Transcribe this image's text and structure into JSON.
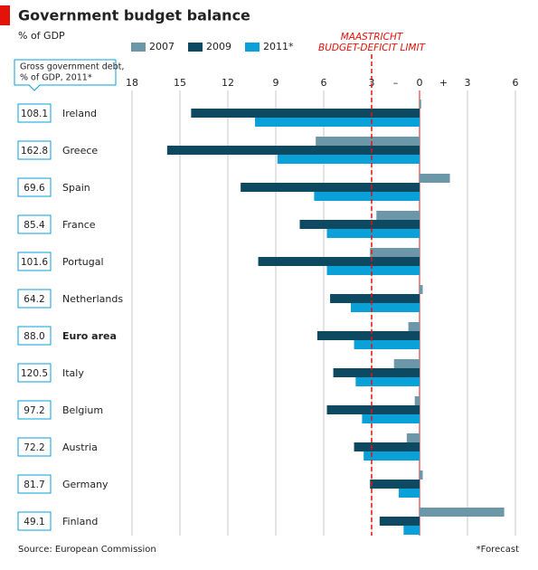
{
  "chart_data": {
    "type": "hbar",
    "title": "Government budget balance",
    "subtitle": "% of GDP",
    "categories": [
      "Ireland",
      "Greece",
      "Spain",
      "France",
      "Portugal",
      "Netherlands",
      "Euro area",
      "Italy",
      "Belgium",
      "Austria",
      "Germany",
      "Finland"
    ],
    "highlight_category": "Euro area",
    "series": [
      {
        "name": "2007",
        "color": "#6b97a8",
        "values": [
          0.1,
          -6.5,
          1.9,
          -2.7,
          -3.1,
          0.2,
          -0.7,
          -1.6,
          -0.3,
          -0.8,
          0.2,
          5.3
        ]
      },
      {
        "name": "2009",
        "color": "#0d4a62",
        "values": [
          -14.3,
          -15.8,
          -11.2,
          -7.5,
          -10.1,
          -5.6,
          -6.4,
          -5.4,
          -5.8,
          -4.1,
          -3.1,
          -2.5
        ]
      },
      {
        "name": "2011*",
        "color": "#0aa0d8",
        "values": [
          -10.3,
          -8.9,
          -6.6,
          -5.8,
          -5.8,
          -4.3,
          -4.1,
          -4.0,
          -3.6,
          -3.5,
          -1.3,
          -1.0
        ]
      }
    ],
    "xlim": [
      -18,
      6
    ],
    "xticks": [
      {
        "value": -18,
        "label": "18"
      },
      {
        "value": -15,
        "label": "15"
      },
      {
        "value": -12,
        "label": "12"
      },
      {
        "value": -9,
        "label": "9"
      },
      {
        "value": -6,
        "label": "6"
      },
      {
        "value": -3,
        "label": "3"
      },
      0,
      3,
      6
    ],
    "axis_signs": [
      {
        "value": -1.5,
        "label": "–"
      },
      {
        "value": 1.5,
        "label": "+"
      }
    ],
    "reference_line": {
      "value": -3,
      "label_lines": [
        "MAASTRICHT",
        "BUDGET-DEFICIT LIMIT"
      ],
      "color": "#e3120b"
    },
    "grid": true,
    "debt_label_lines": [
      "Gross government debt,",
      "% of GDP, 2011*"
    ],
    "debt": [
      "108.1",
      "162.8",
      "69.6",
      "85.4",
      "101.6",
      "64.2",
      "88.0",
      "120.5",
      "97.2",
      "72.2",
      "81.7",
      "49.1"
    ],
    "source": "Source: European Commission",
    "footnote": "*Forecast"
  }
}
